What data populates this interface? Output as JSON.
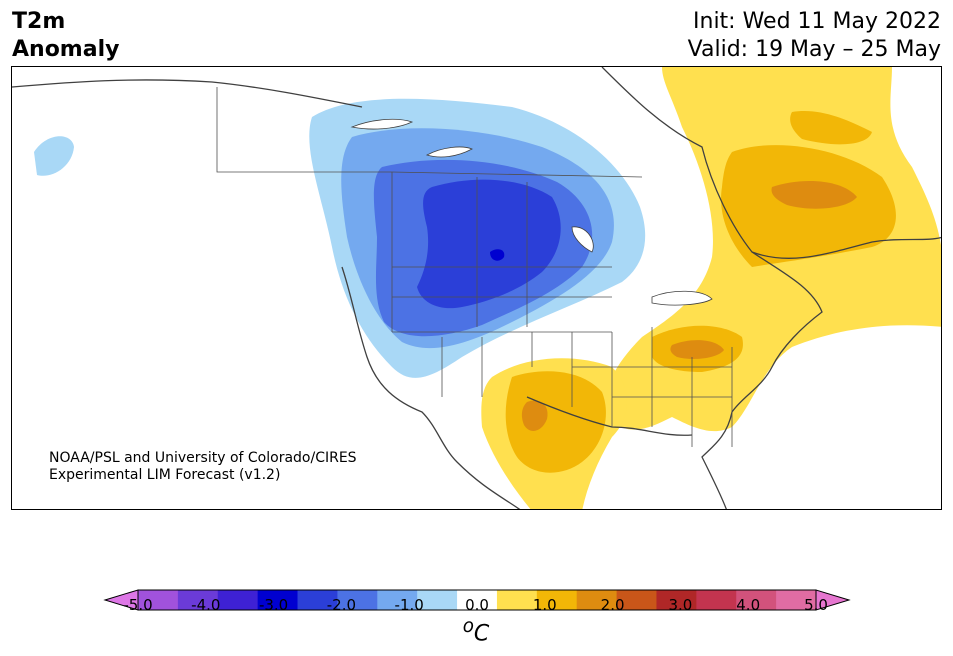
{
  "header": {
    "title_line1": "T2m",
    "title_line2": "Anomaly",
    "init": "Init: Wed 11 May 2022",
    "valid": "Valid: 19 May – 25 May"
  },
  "map": {
    "credit_line1": "NOAA/PSL and University of Colorado/CIRES",
    "credit_line2": "Experimental LIM Forecast (v1.2)"
  },
  "colorbar": {
    "unit": "°C",
    "unit_super": "o",
    "unit_base": "C",
    "ticks": [
      "-5.0",
      "-4.0",
      "-3.0",
      "-2.0",
      "-1.0",
      "0.0",
      "1.0",
      "2.0",
      "3.0",
      "4.0",
      "5.0"
    ],
    "colors": [
      "#dd77e6",
      "#a152dc",
      "#6b3bd8",
      "#3e21d4",
      "#0000d0",
      "#2b3fd8",
      "#4c72e4",
      "#74a9ef",
      "#a9d8f6",
      "#ffffff",
      "#ffe04f",
      "#f2b707",
      "#de8c10",
      "#c95619",
      "#b02727",
      "#c3344f",
      "#d2527c",
      "#e06ca3",
      "#e676d0"
    ],
    "min_color": "#dd77e6",
    "max_color": "#e676d0"
  }
}
